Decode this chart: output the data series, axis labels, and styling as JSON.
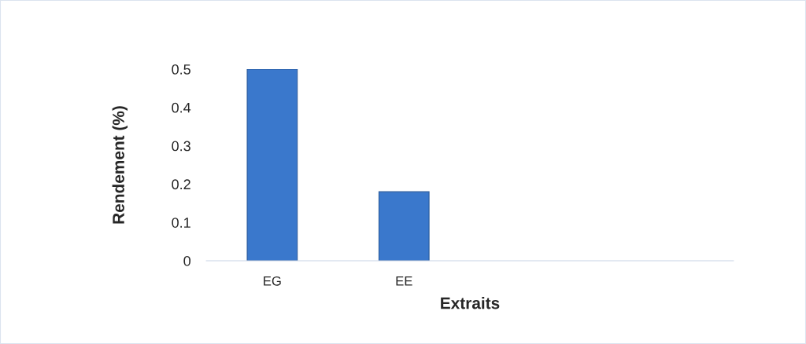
{
  "chart_data": {
    "type": "bar",
    "xlabel": "Extraits",
    "ylabel": "Rendement (%)",
    "categories": [
      "EG",
      "EE",
      null,
      null
    ],
    "values": [
      0.5,
      0.18,
      null,
      null
    ],
    "color": "#3a78cc",
    "ylim": [
      0,
      0.5
    ],
    "yticks": [
      0,
      0.1,
      0.2,
      0.3,
      0.4,
      0.5
    ],
    "grid": false
  }
}
